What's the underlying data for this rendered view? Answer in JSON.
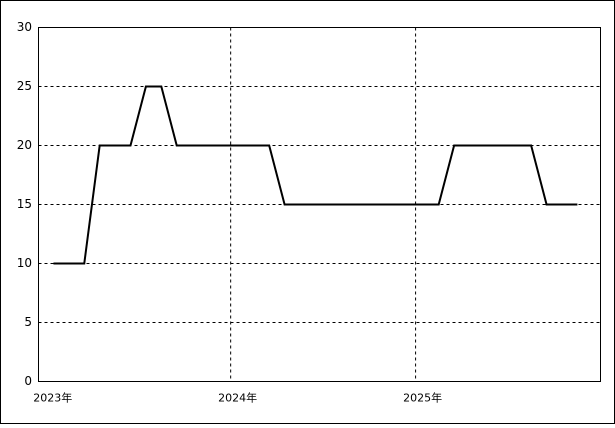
{
  "chart_data": {
    "type": "line",
    "x": [
      0,
      1,
      2,
      3,
      4,
      5,
      6,
      7,
      8,
      9,
      10,
      11,
      12,
      13,
      14,
      15,
      16,
      17,
      18,
      19,
      20,
      21,
      22,
      23,
      24,
      25,
      26,
      27,
      28,
      29,
      30,
      31,
      32,
      33,
      34
    ],
    "series": [
      {
        "color": "#000000",
        "values": [
          10,
          10,
          10,
          20,
          20,
          20,
          25,
          25,
          20,
          20,
          20,
          20,
          20,
          20,
          20,
          15,
          15,
          15,
          15,
          15,
          15,
          15,
          15,
          15,
          15,
          15,
          20,
          20,
          20,
          20,
          20,
          20,
          15,
          15,
          15
        ]
      }
    ],
    "xlim": [
      -0.97,
      35.5
    ],
    "xticks": [
      {
        "value": -0.5,
        "label": "2023年"
      },
      {
        "value": 11.5,
        "label": "2024年"
      },
      {
        "value": 23.5,
        "label": "2025年"
      }
    ],
    "ylim": [
      0,
      30
    ],
    "yticks": [
      0,
      5,
      10,
      15,
      20,
      25,
      30
    ],
    "grid": true
  }
}
